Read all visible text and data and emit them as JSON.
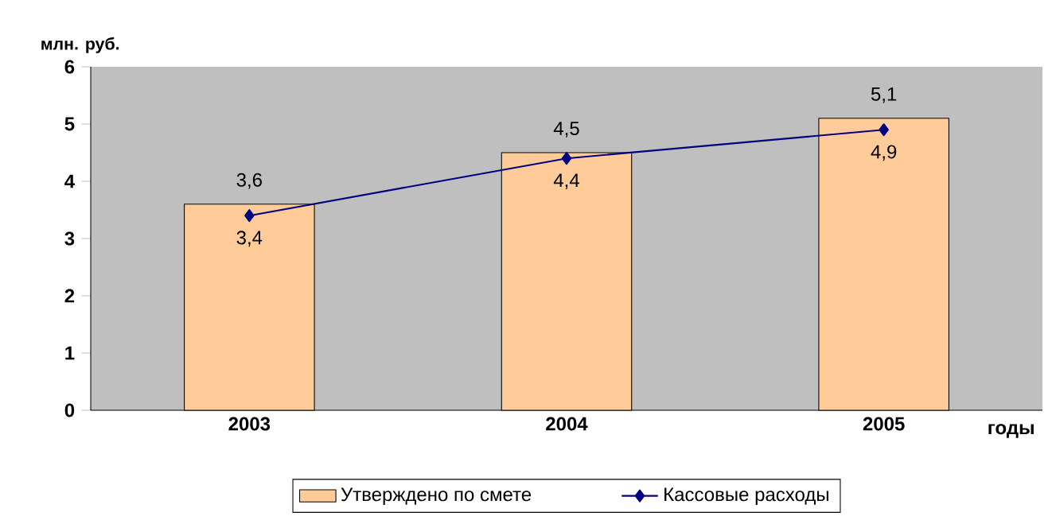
{
  "chart_data": {
    "type": "bar",
    "ylabel": "млн. руб.",
    "xlabel": "годы",
    "categories": [
      "2003",
      "2004",
      "2005"
    ],
    "series": [
      {
        "name": "Утверждено по смете",
        "color": "#ffcc99",
        "values": [
          3.6,
          4.5,
          5.1
        ],
        "value_labels": [
          "3,6",
          "4,5",
          "5,1"
        ]
      },
      {
        "name": "Кассовые расходы",
        "type": "line",
        "color": "#000080",
        "marker": "diamond",
        "values": [
          3.4,
          4.4,
          4.9
        ],
        "value_labels": [
          "3,4",
          "4,4",
          "4,9"
        ]
      }
    ],
    "ylim": [
      0,
      6
    ],
    "yticks": [
      0,
      1,
      2,
      3,
      4,
      5,
      6
    ],
    "grid": false,
    "legend": "bottom"
  }
}
